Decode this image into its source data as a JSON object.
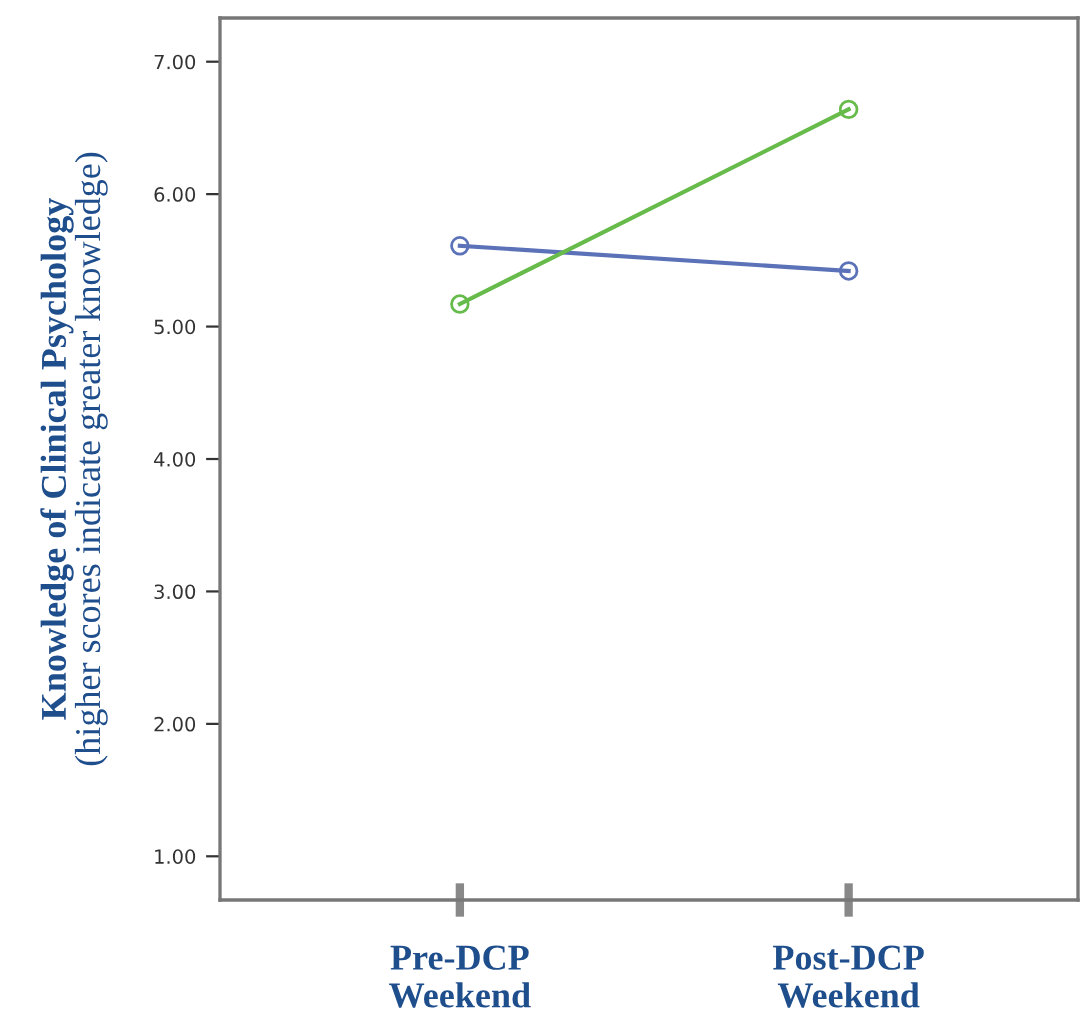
{
  "chart_data": {
    "type": "line",
    "ylabel": "Knowledge of Clinical Psychology\n(higher scores indicate greater knowledge)",
    "categories": [
      "Pre-DCP\nWeekend",
      "Post-DCP\nWeekend"
    ],
    "series": [
      {
        "color": "#5b72b8",
        "values": [
          5.61,
          5.42
        ]
      },
      {
        "color": "#66bb4a",
        "values": [
          5.17,
          6.64
        ]
      }
    ],
    "ylim": [
      0.67,
      7.33
    ],
    "yticks": [
      {
        "value": 1,
        "label": "1.00"
      },
      {
        "value": 2,
        "label": "2.00"
      },
      {
        "value": 3,
        "label": "3.00"
      },
      {
        "value": 4,
        "label": "4.00"
      },
      {
        "value": 5,
        "label": "5.00"
      },
      {
        "value": 6,
        "label": "6.00"
      },
      {
        "value": 7,
        "label": "7.00"
      }
    ],
    "marker": "circle",
    "line_style": "solid",
    "grid": false,
    "legend": false
  }
}
